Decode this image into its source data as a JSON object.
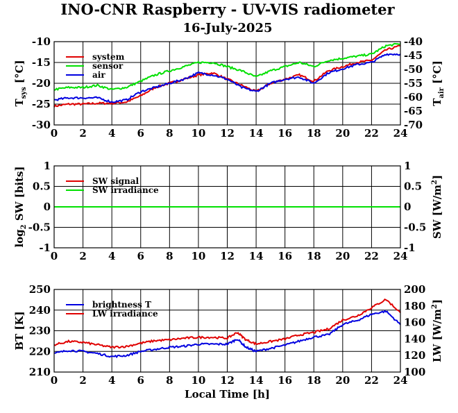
{
  "figure": {
    "title": "INO-CNR Raspberry - UV-VIS radiometer",
    "date": "16-July-2025"
  },
  "colors": {
    "red": "#e00000",
    "green": "#00e000",
    "blue": "#0000e0",
    "grid": "#000000"
  },
  "chart_data": [
    {
      "type": "line",
      "x_label": "",
      "ylabel_left": "T",
      "ylabel_left_sub": "sys",
      "ylabel_left_unit": "[°C]",
      "ylabel_right": "T",
      "ylabel_right_sub": "air",
      "ylabel_right_unit": "[°C]",
      "xlim": [
        0,
        24
      ],
      "xticks": [
        "0",
        "2",
        "4",
        "6",
        "8",
        "10",
        "12",
        "14",
        "16",
        "18",
        "20",
        "22",
        "24"
      ],
      "ylim_left": [
        -30,
        -10
      ],
      "yticks_left": [
        "-30",
        "-25",
        "-20",
        "-15",
        "-10"
      ],
      "ylim_right": [
        -70,
        -40
      ],
      "yticks_right": [
        "-70",
        "-65",
        "-60",
        "-55",
        "-50",
        "-45",
        "-40"
      ],
      "grid": true,
      "legend_position": "top-left",
      "series": [
        {
          "name": "system",
          "color": "red",
          "axis": "left",
          "x": [
            0,
            1,
            2,
            3,
            4,
            5,
            6,
            7,
            8,
            9,
            10,
            11,
            12,
            13,
            14,
            15,
            16,
            17,
            18,
            19,
            20,
            21,
            22,
            23,
            24
          ],
          "y": [
            -25.5,
            -25,
            -25,
            -24.8,
            -24.8,
            -24.5,
            -23,
            -21,
            -20,
            -19,
            -18,
            -17.5,
            -19,
            -20.5,
            -22,
            -20,
            -19,
            -18,
            -19.5,
            -17,
            -16,
            -15,
            -14.5,
            -12,
            -11
          ]
        },
        {
          "name": "sensor",
          "color": "green",
          "axis": "left",
          "x": [
            0,
            1,
            2,
            3,
            4,
            5,
            6,
            7,
            8,
            9,
            10,
            11,
            12,
            13,
            14,
            15,
            16,
            17,
            18,
            19,
            20,
            21,
            22,
            23,
            24
          ],
          "y": [
            -21.5,
            -21,
            -21,
            -20.5,
            -21.5,
            -21,
            -19.5,
            -18,
            -17,
            -16,
            -15,
            -15,
            -16,
            -17,
            -18.5,
            -17,
            -16,
            -15,
            -16,
            -14.5,
            -14,
            -13.5,
            -13,
            -11,
            -10.5
          ]
        },
        {
          "name": "air",
          "color": "blue",
          "axis": "left",
          "x": [
            0,
            1,
            2,
            3,
            4,
            5,
            6,
            7,
            8,
            9,
            10,
            11,
            12,
            13,
            14,
            15,
            16,
            17,
            18,
            19,
            20,
            21,
            22,
            23,
            24
          ],
          "y": [
            -24,
            -23.5,
            -23.5,
            -23.5,
            -24.5,
            -24,
            -22,
            -21,
            -20,
            -19,
            -17.5,
            -18,
            -19,
            -21,
            -22,
            -20,
            -19,
            -18.5,
            -20,
            -17.5,
            -16.5,
            -15.5,
            -15,
            -13,
            -13
          ]
        }
      ]
    },
    {
      "type": "line",
      "x_label": "",
      "ylabel_left": "log",
      "ylabel_left_sub": "2",
      "ylabel_left_unit": "SW [bits]",
      "ylabel_right": "SW [W/m",
      "ylabel_right_sup": "2",
      "ylabel_right_unit": "]",
      "xlim": [
        0,
        24
      ],
      "xticks": [
        "0",
        "2",
        "4",
        "6",
        "8",
        "10",
        "12",
        "14",
        "16",
        "18",
        "20",
        "22",
        "24"
      ],
      "ylim_left": [
        -1,
        1
      ],
      "yticks_left": [
        "-1",
        "-0.5",
        "0",
        "0.5",
        "1"
      ],
      "ylim_right": [
        -1,
        1
      ],
      "yticks_right": [
        "-1",
        "-0.5",
        "0",
        "0.5",
        "1"
      ],
      "grid": true,
      "legend_position": "top-left",
      "series": [
        {
          "name": "SW signal",
          "color": "red",
          "axis": "left",
          "x": [
            0,
            24
          ],
          "y": [
            0,
            0
          ]
        },
        {
          "name": "SW irradiance",
          "color": "green",
          "axis": "left",
          "x": [
            0,
            24
          ],
          "y": [
            0,
            0
          ]
        }
      ]
    },
    {
      "type": "line",
      "x_label": "Local Time [h]",
      "ylabel_left": "BT [K]",
      "ylabel_right": "LW [W/m",
      "ylabel_right_sup": "2",
      "ylabel_right_unit": "]",
      "xlim": [
        0,
        24
      ],
      "xticks": [
        "0",
        "2",
        "4",
        "6",
        "8",
        "10",
        "12",
        "14",
        "16",
        "18",
        "20",
        "22",
        "24"
      ],
      "ylim_left": [
        210,
        250
      ],
      "yticks_left": [
        "210",
        "220",
        "230",
        "240",
        "250"
      ],
      "ylim_right": [
        100,
        200
      ],
      "yticks_right": [
        "100",
        "120",
        "140",
        "160",
        "180",
        "200"
      ],
      "grid": true,
      "legend_position": "top-left",
      "series": [
        {
          "name": "brightness T",
          "color": "blue",
          "axis": "left",
          "x": [
            0,
            1,
            2,
            3,
            4,
            5,
            6,
            7,
            8,
            9,
            10,
            11,
            12,
            12.7,
            13.3,
            14,
            15,
            16,
            17,
            18,
            19,
            20,
            21,
            22,
            23,
            24
          ],
          "y": [
            219,
            220.5,
            220,
            219,
            217.5,
            218,
            220,
            221,
            222,
            222.5,
            223.5,
            223.5,
            223.5,
            226,
            222,
            220,
            221.5,
            223,
            225,
            227,
            228,
            233,
            235,
            238,
            239.5,
            233
          ]
        },
        {
          "name": "LW irradiance",
          "color": "red",
          "axis": "right",
          "x": [
            0,
            1,
            2,
            3,
            4,
            5,
            6,
            7,
            8,
            9,
            10,
            11,
            12,
            12.7,
            13.3,
            14,
            15,
            16,
            17,
            18,
            19,
            20,
            21,
            22,
            23,
            24
          ],
          "y": [
            133,
            137,
            136,
            133,
            130,
            131,
            135,
            138,
            139,
            141,
            142,
            142,
            141,
            148,
            139,
            134,
            137,
            140,
            145,
            148,
            152,
            163,
            168,
            178,
            188,
            172
          ]
        }
      ]
    }
  ]
}
